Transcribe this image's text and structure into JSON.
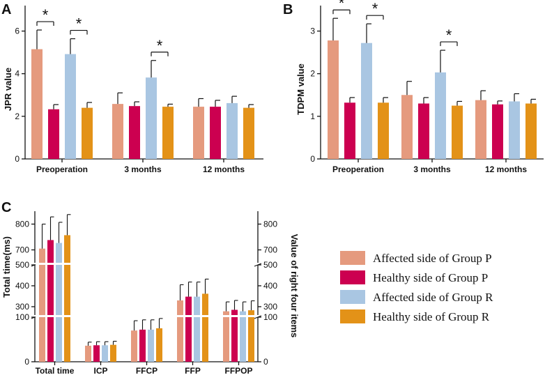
{
  "colors": {
    "affected_p": "#e59a7e",
    "healthy_p": "#cc0050",
    "affected_r": "#a9c6e2",
    "healthy_r": "#e39218",
    "axis": "#111111"
  },
  "panel_labels": {
    "a": "A",
    "b": "B",
    "c": "C"
  },
  "legend": {
    "items": [
      {
        "label": "Affected side of Group P",
        "color": "#e59a7e"
      },
      {
        "label": "Healthy side of Group P",
        "color": "#cc0050"
      },
      {
        "label": "Affected side of Group R",
        "color": "#a9c6e2"
      },
      {
        "label": "Healthy side of Group R",
        "color": "#e39218"
      }
    ]
  },
  "chart_data": [
    {
      "panel": "A",
      "type": "bar",
      "ylabel": "JPR value",
      "ylim": [
        0,
        7
      ],
      "yticks": [
        0,
        2,
        4,
        6
      ],
      "categories": [
        "Preoperation",
        "3 months",
        "12 months"
      ],
      "series": [
        {
          "name": "Affected side of Group P",
          "values": [
            5.15,
            2.58,
            2.45
          ],
          "errors": [
            0.9,
            0.52,
            0.38
          ]
        },
        {
          "name": "Healthy side of Group P",
          "values": [
            2.33,
            2.48,
            2.45
          ],
          "errors": [
            0.22,
            0.2,
            0.3
          ]
        },
        {
          "name": "Affected side of Group R",
          "values": [
            4.92,
            3.82,
            2.62
          ],
          "errors": [
            0.72,
            0.8,
            0.32
          ]
        },
        {
          "name": "Healthy side of Group R",
          "values": [
            2.4,
            2.45,
            2.4
          ],
          "errors": [
            0.25,
            0.12,
            0.15
          ]
        }
      ],
      "significance": [
        {
          "category": 0,
          "from": 0,
          "to": 1,
          "label": "*"
        },
        {
          "category": 0,
          "from": 2,
          "to": 3,
          "label": "*"
        },
        {
          "category": 1,
          "from": 2,
          "to": 3,
          "label": "*"
        }
      ]
    },
    {
      "panel": "B",
      "type": "bar",
      "ylabel": "TDPM value",
      "ylim": [
        0,
        3.5
      ],
      "yticks": [
        0,
        1,
        2,
        3
      ],
      "categories": [
        "Preoperation",
        "3 months",
        "12 months"
      ],
      "series": [
        {
          "name": "Affected side of Group P",
          "values": [
            2.78,
            1.5,
            1.38
          ],
          "errors": [
            0.52,
            0.32,
            0.22
          ]
        },
        {
          "name": "Healthy side of Group P",
          "values": [
            1.32,
            1.3,
            1.28
          ],
          "errors": [
            0.12,
            0.14,
            0.08
          ]
        },
        {
          "name": "Affected side of Group R",
          "values": [
            2.72,
            2.03,
            1.35
          ],
          "errors": [
            0.45,
            0.52,
            0.18
          ]
        },
        {
          "name": "Healthy side of Group R",
          "values": [
            1.32,
            1.25,
            1.3
          ],
          "errors": [
            0.12,
            0.1,
            0.1
          ]
        }
      ],
      "significance": [
        {
          "category": 0,
          "from": 0,
          "to": 1,
          "label": "*"
        },
        {
          "category": 0,
          "from": 2,
          "to": 3,
          "label": "*"
        },
        {
          "category": 1,
          "from": 2,
          "to": 3,
          "label": "*"
        }
      ]
    },
    {
      "panel": "C",
      "type": "bar",
      "ylabel_left": "Total time(ms)",
      "ylabel_right": "Value of right four items",
      "broken_axis": true,
      "segments": [
        {
          "range": [
            0,
            100
          ],
          "ticks": [
            0,
            100
          ]
        },
        {
          "range": [
            260,
            500
          ],
          "ticks": [
            300,
            400,
            500
          ]
        },
        {
          "range": [
            650,
            850
          ],
          "ticks": [
            700,
            800
          ]
        }
      ],
      "categories": [
        "Total time",
        "ICP",
        "FFCP",
        "FFP",
        "FFPOP"
      ],
      "series": [
        {
          "name": "Affected side of Group P",
          "values": [
            705,
            36,
            70,
            330,
            278
          ],
          "errors": [
            95,
            8,
            22,
            75,
            45
          ]
        },
        {
          "name": "Healthy side of Group P",
          "values": [
            738,
            37,
            72,
            348,
            285
          ],
          "errors": [
            90,
            8,
            22,
            70,
            45
          ]
        },
        {
          "name": "Affected side of Group R",
          "values": [
            727,
            37,
            72,
            348,
            278
          ],
          "errors": [
            80,
            8,
            22,
            70,
            45
          ]
        },
        {
          "name": "Healthy side of Group R",
          "values": [
            757,
            38,
            75,
            362,
            283
          ],
          "errors": [
            80,
            8,
            22,
            70,
            45
          ]
        }
      ]
    }
  ]
}
